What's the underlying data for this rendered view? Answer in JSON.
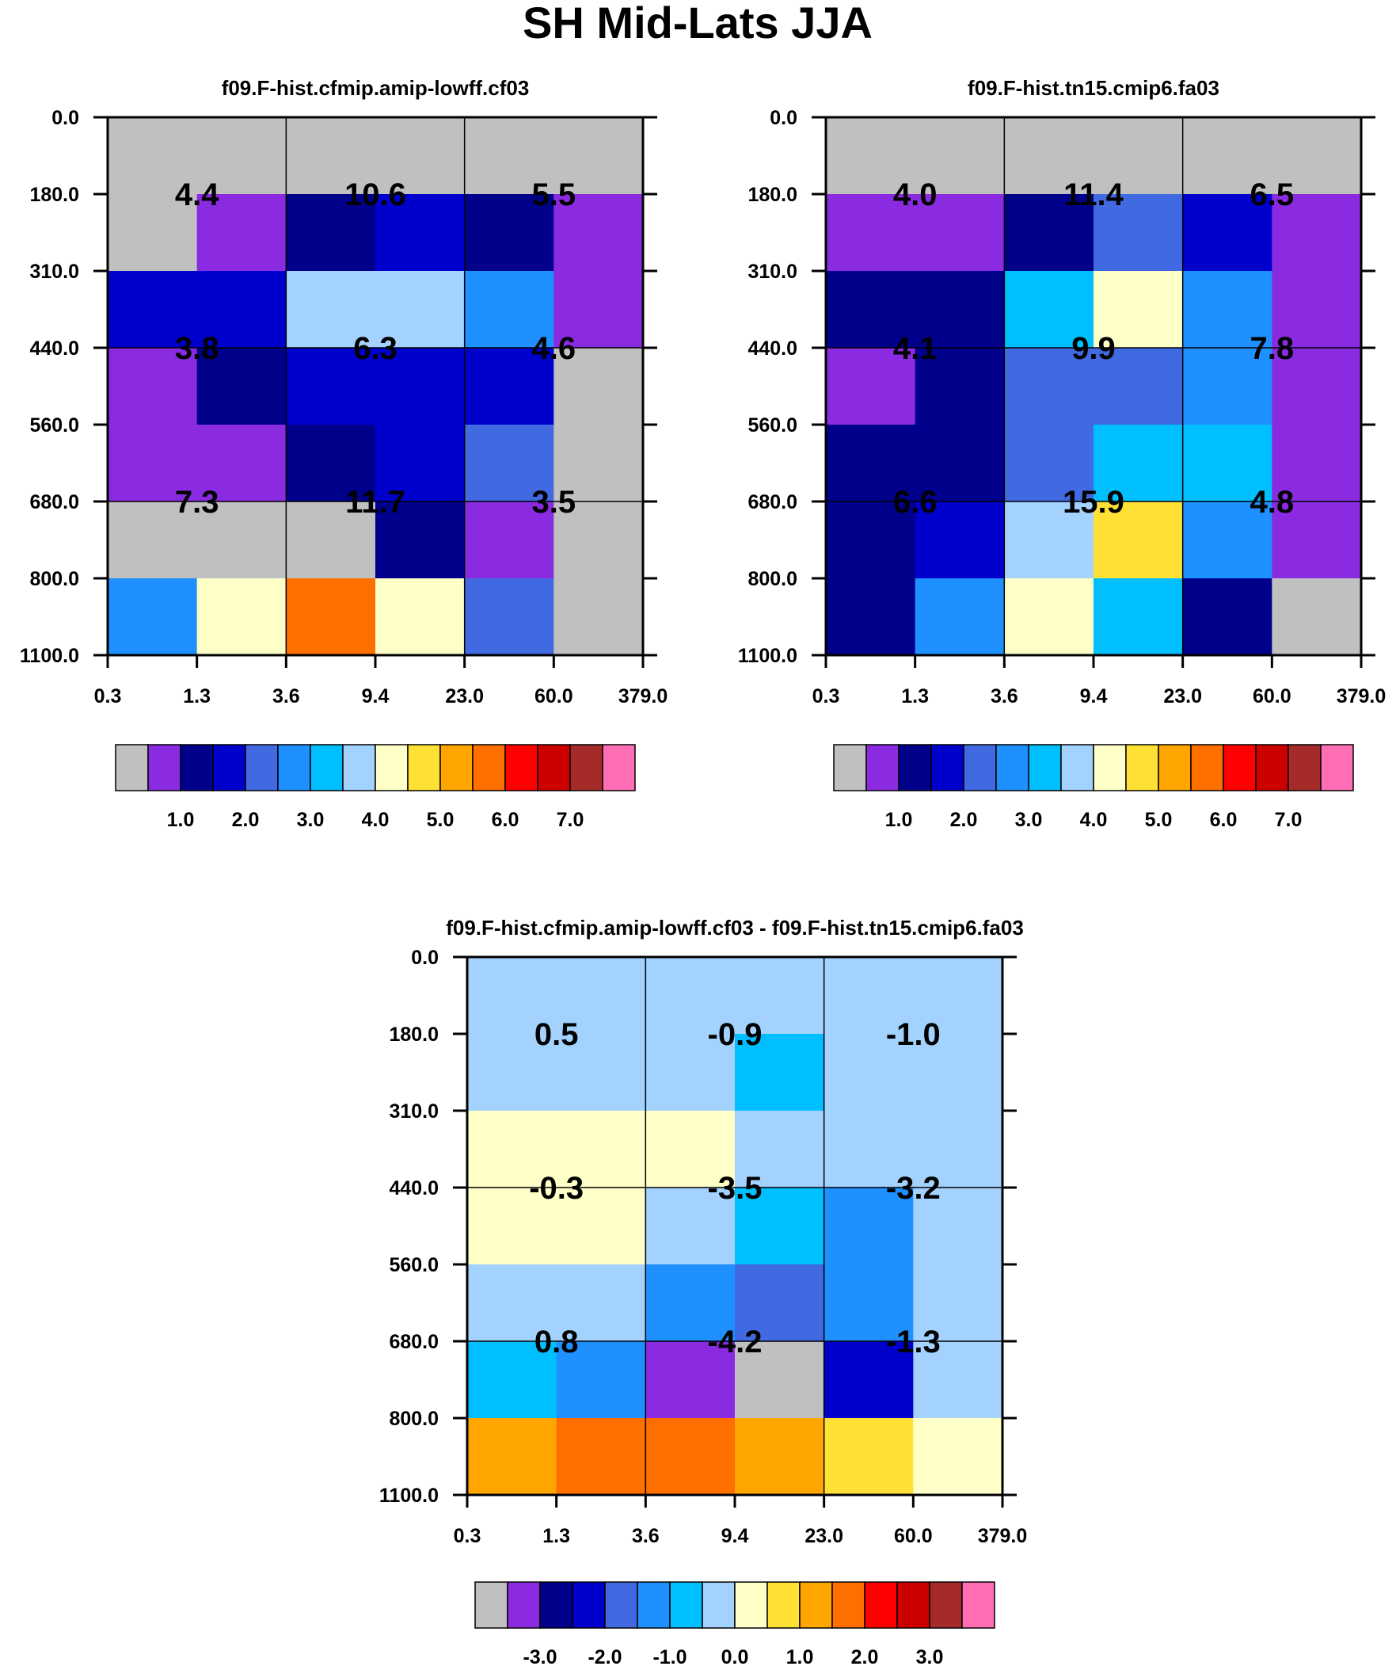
{
  "page_title": "SH Mid-Lats JJA",
  "palette": {
    "gray": "#c0c0c0",
    "violet": "#8a2be2",
    "navy": "#00008b",
    "blue": "#0000cd",
    "royal": "#4169e1",
    "dodger": "#1e90ff",
    "sky": "#00bfff",
    "lightsky": "#a3d2ff",
    "cream": "#ffffc8",
    "gold": "#ffe135",
    "orange": "#ffa500",
    "darkorange": "#ff6f00",
    "red": "#ff0000",
    "crimson": "#cd0000",
    "brown": "#a52a2a",
    "pink": "#ff6eb4"
  },
  "chart_data": [
    {
      "type": "heatmap",
      "title": "f09.F-hist.cfmip.amip-lowff.cf03",
      "x_edges": [
        "0.3",
        "1.3",
        "3.6",
        "9.4",
        "23.0",
        "60.0",
        "379.0"
      ],
      "y_edges": [
        "0.0",
        "180.0",
        "310.0",
        "440.0",
        "560.0",
        "680.0",
        "800.0",
        "1100.0"
      ],
      "cells": [
        [
          "gray",
          "gray",
          "gray",
          "gray",
          "gray",
          "gray"
        ],
        [
          "gray",
          "violet",
          "navy",
          "blue",
          "navy",
          "violet"
        ],
        [
          "blue",
          "blue",
          "lightsky",
          "lightsky",
          "dodger",
          "violet"
        ],
        [
          "violet",
          "navy",
          "blue",
          "blue",
          "blue",
          "gray"
        ],
        [
          "violet",
          "violet",
          "navy",
          "blue",
          "royal",
          "gray"
        ],
        [
          "gray",
          "gray",
          "gray",
          "navy",
          "violet",
          "gray"
        ],
        [
          "dodger",
          "cream",
          "darkorange",
          "cream",
          "royal",
          "gray"
        ]
      ],
      "group_values": [
        [
          "4.4",
          "10.6",
          "5.5"
        ],
        [
          "3.8",
          "6.3",
          "4.6"
        ],
        [
          "7.3",
          "11.7",
          "3.5"
        ]
      ],
      "colorbar": {
        "colors": [
          "gray",
          "violet",
          "navy",
          "blue",
          "royal",
          "dodger",
          "sky",
          "lightsky",
          "cream",
          "gold",
          "orange",
          "darkorange",
          "red",
          "crimson",
          "brown",
          "pink"
        ],
        "labels": [
          "1.0",
          "2.0",
          "3.0",
          "4.0",
          "5.0",
          "6.0",
          "7.0"
        ],
        "label_box_positions": [
          2,
          4,
          6,
          8,
          10,
          12,
          14
        ]
      }
    },
    {
      "type": "heatmap",
      "title": "f09.F-hist.tn15.cmip6.fa03",
      "x_edges": [
        "0.3",
        "1.3",
        "3.6",
        "9.4",
        "23.0",
        "60.0",
        "379.0"
      ],
      "y_edges": [
        "0.0",
        "180.0",
        "310.0",
        "440.0",
        "560.0",
        "680.0",
        "800.0",
        "1100.0"
      ],
      "cells": [
        [
          "gray",
          "gray",
          "gray",
          "gray",
          "gray",
          "gray"
        ],
        [
          "violet",
          "violet",
          "navy",
          "royal",
          "blue",
          "violet"
        ],
        [
          "navy",
          "navy",
          "sky",
          "cream",
          "dodger",
          "violet"
        ],
        [
          "violet",
          "navy",
          "royal",
          "royal",
          "dodger",
          "violet"
        ],
        [
          "navy",
          "navy",
          "royal",
          "sky",
          "sky",
          "violet"
        ],
        [
          "navy",
          "blue",
          "lightsky",
          "gold",
          "dodger",
          "violet"
        ],
        [
          "navy",
          "dodger",
          "cream",
          "sky",
          "navy",
          "gray"
        ]
      ],
      "group_values": [
        [
          "4.0",
          "11.4",
          "6.5"
        ],
        [
          "4.1",
          "9.9",
          "7.8"
        ],
        [
          "6.6",
          "15.9",
          "4.8"
        ]
      ],
      "colorbar": {
        "colors": [
          "gray",
          "violet",
          "navy",
          "blue",
          "royal",
          "dodger",
          "sky",
          "lightsky",
          "cream",
          "gold",
          "orange",
          "darkorange",
          "red",
          "crimson",
          "brown",
          "pink"
        ],
        "labels": [
          "1.0",
          "2.0",
          "3.0",
          "4.0",
          "5.0",
          "6.0",
          "7.0"
        ],
        "label_box_positions": [
          2,
          4,
          6,
          8,
          10,
          12,
          14
        ]
      }
    },
    {
      "type": "heatmap",
      "title": "f09.F-hist.cfmip.amip-lowff.cf03 - f09.F-hist.tn15.cmip6.fa03",
      "x_edges": [
        "0.3",
        "1.3",
        "3.6",
        "9.4",
        "23.0",
        "60.0",
        "379.0"
      ],
      "y_edges": [
        "0.0",
        "180.0",
        "310.0",
        "440.0",
        "560.0",
        "680.0",
        "800.0",
        "1100.0"
      ],
      "cells": [
        [
          "lightsky",
          "lightsky",
          "lightsky",
          "lightsky",
          "lightsky",
          "lightsky"
        ],
        [
          "lightsky",
          "lightsky",
          "lightsky",
          "sky",
          "lightsky",
          "lightsky"
        ],
        [
          "cream",
          "cream",
          "cream",
          "lightsky",
          "lightsky",
          "lightsky"
        ],
        [
          "cream",
          "cream",
          "lightsky",
          "sky",
          "dodger",
          "lightsky"
        ],
        [
          "lightsky",
          "lightsky",
          "dodger",
          "royal",
          "dodger",
          "lightsky"
        ],
        [
          "sky",
          "dodger",
          "violet",
          "gray",
          "blue",
          "lightsky"
        ],
        [
          "orange",
          "darkorange",
          "darkorange",
          "orange",
          "gold",
          "cream"
        ]
      ],
      "group_values": [
        [
          "0.5",
          "-0.9",
          "-1.0"
        ],
        [
          "-0.3",
          "-3.5",
          "-3.2"
        ],
        [
          "0.8",
          "-4.2",
          "-1.3"
        ]
      ],
      "colorbar": {
        "colors": [
          "gray",
          "violet",
          "navy",
          "blue",
          "royal",
          "dodger",
          "sky",
          "lightsky",
          "cream",
          "gold",
          "orange",
          "darkorange",
          "red",
          "crimson",
          "brown",
          "pink"
        ],
        "labels": [
          "-3.0",
          "-2.0",
          "-1.0",
          "0.0",
          "1.0",
          "2.0",
          "3.0"
        ],
        "label_box_positions": [
          2,
          4,
          6,
          8,
          10,
          12,
          14
        ]
      }
    }
  ]
}
